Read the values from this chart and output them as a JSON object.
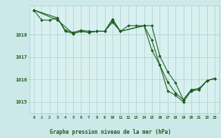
{
  "background_color": "#cce8e8",
  "plot_bg_color": "#d8f0f0",
  "grid_color": "#aacccc",
  "line_color": "#1a5c1a",
  "marker_color": "#1a5c1a",
  "title": "Graphe pression niveau de la mer (hPa)",
  "text_color": "#1a5c1a",
  "xlim": [
    -0.5,
    23.5
  ],
  "ylim": [
    1014.5,
    1019.3
  ],
  "yticks": [
    1015,
    1016,
    1017,
    1018
  ],
  "xticks": [
    0,
    1,
    2,
    3,
    4,
    5,
    6,
    7,
    8,
    9,
    10,
    11,
    12,
    13,
    14,
    15,
    16,
    17,
    18,
    19,
    20,
    21,
    22,
    23
  ],
  "series1": {
    "x": [
      0,
      1,
      2,
      3,
      4,
      5,
      6,
      7,
      8,
      9,
      10,
      11,
      12,
      13,
      14,
      15,
      16,
      17,
      18,
      19,
      20,
      21,
      22,
      23
    ],
    "y": [
      1019.1,
      1018.65,
      1018.65,
      1018.75,
      1018.2,
      1018.1,
      1018.2,
      1018.15,
      1018.15,
      1018.15,
      1018.65,
      1018.15,
      1018.4,
      1018.4,
      1018.4,
      1018.4,
      1017.05,
      1016.35,
      1015.85,
      1015.1,
      1015.5,
      1015.55,
      1015.95,
      1016.05
    ]
  },
  "series2": {
    "x": [
      0,
      3,
      4,
      5,
      6,
      7,
      8,
      9,
      10,
      11,
      14,
      15,
      16,
      17,
      18,
      19,
      20,
      21,
      22,
      23
    ],
    "y": [
      1019.1,
      1018.75,
      1018.15,
      1018.05,
      1018.15,
      1018.1,
      1018.15,
      1018.15,
      1018.7,
      1018.15,
      1018.4,
      1017.75,
      1016.65,
      1015.9,
      1015.4,
      1015.1,
      1015.55,
      1015.6,
      1015.95,
      1016.05
    ]
  },
  "series3": {
    "x": [
      0,
      3,
      5,
      6,
      7,
      8,
      9,
      10,
      11,
      14,
      15,
      16,
      17,
      18,
      19,
      20,
      21,
      22,
      23
    ],
    "y": [
      1019.1,
      1018.65,
      1018.05,
      1018.15,
      1018.1,
      1018.15,
      1018.15,
      1018.55,
      1018.15,
      1018.4,
      1017.3,
      1016.65,
      1015.5,
      1015.3,
      1015.0,
      1015.5,
      1015.55,
      1015.95,
      1016.05
    ]
  }
}
